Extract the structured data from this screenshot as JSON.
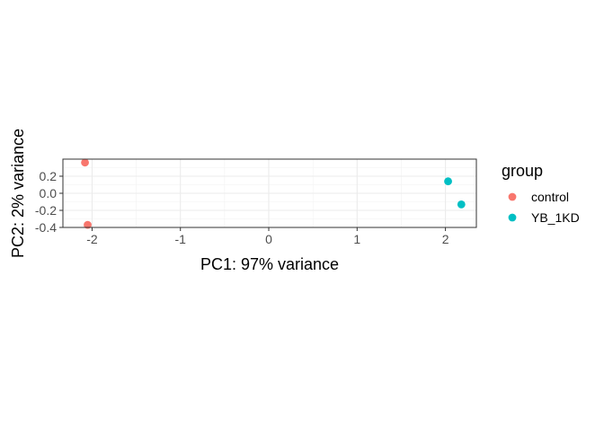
{
  "chart_data": {
    "type": "scatter",
    "xlabel": "PC1: 97% variance",
    "ylabel": "PC2: 2% variance",
    "xlim": [
      -2.33,
      2.35
    ],
    "ylim": [
      -0.4,
      0.4
    ],
    "x_ticks": [
      -2,
      -1,
      0,
      1,
      2
    ],
    "x_tick_labels": [
      "-2",
      "-1",
      "0",
      "1",
      "2"
    ],
    "y_ticks": [
      0.2,
      0.0,
      -0.2,
      -0.4
    ],
    "y_tick_labels": [
      "0.2",
      "0.0",
      "-0.2",
      "-0.4"
    ],
    "grid": true,
    "legend": {
      "title": "group",
      "position": "right"
    },
    "series": [
      {
        "name": "control",
        "color": "#F8766D",
        "points": [
          {
            "x": -2.08,
            "y": 0.36
          },
          {
            "x": -2.05,
            "y": -0.37
          }
        ]
      },
      {
        "name": "YB_1KD",
        "color": "#00BFC4",
        "points": [
          {
            "x": 2.03,
            "y": 0.14
          },
          {
            "x": 2.18,
            "y": -0.13
          }
        ]
      }
    ]
  }
}
